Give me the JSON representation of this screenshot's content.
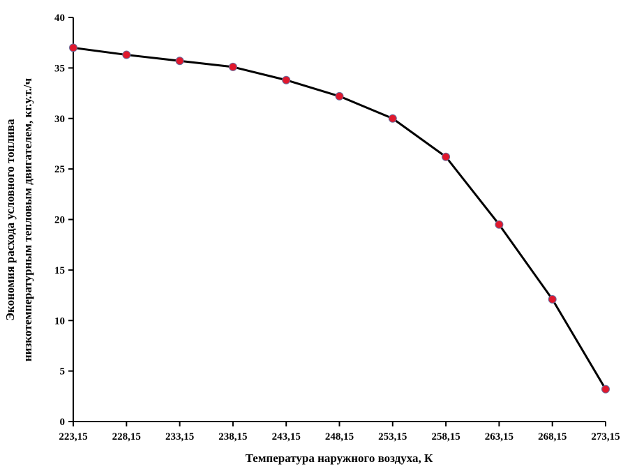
{
  "chart_data": {
    "type": "line",
    "xlabel": "Температура наружного воздуха, К",
    "ylabel_line1": "Экономия расхода условного топлива",
    "ylabel_line2": "низкотемпературным тепловым двигателем, кг.у.т./ч",
    "categories": [
      "223,15",
      "228,15",
      "233,15",
      "238,15",
      "243,15",
      "248,15",
      "253,15",
      "258,15",
      "263,15",
      "268,15",
      "273,15"
    ],
    "series": [
      {
        "values": [
          37.0,
          36.3,
          35.7,
          35.1,
          33.8,
          32.2,
          30.0,
          26.2,
          19.5,
          12.1,
          3.2
        ]
      }
    ],
    "ylim": [
      0,
      40
    ],
    "yticks": [
      "0",
      "5",
      "10",
      "15",
      "20",
      "25",
      "30",
      "35",
      "40"
    ],
    "grid": false,
    "legend": "none",
    "colors": {
      "line": "#000000",
      "marker": "#e0182d",
      "marker_edge": "#6b6b9a"
    }
  }
}
